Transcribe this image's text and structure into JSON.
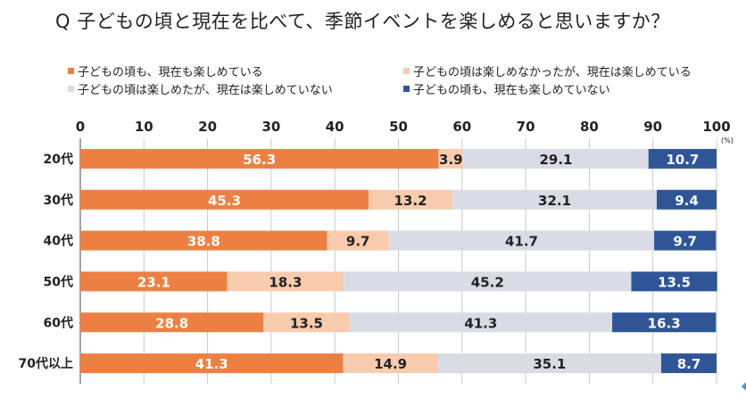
{
  "title": "Q 子どもの頃と現在を比べて、季節イベントを楽しめると思いますか？",
  "colors": {
    "series1": "#ec8042",
    "series2": "#f9cbad",
    "series3": "#d9dce5",
    "series4": "#2f5597",
    "grid": "#c9c9c9",
    "axis": "#222222"
  },
  "chart_data": {
    "type": "bar",
    "orientation": "horizontal-stacked",
    "title": "Q 子どもの頃と現在を比べて、季節イベントを楽しめると思いますか？",
    "unit": "(%)",
    "xlim": [
      0,
      100
    ],
    "xticks": [
      "0",
      "10",
      "20",
      "30",
      "40",
      "50",
      "60",
      "70",
      "80",
      "90",
      "100"
    ],
    "categories": [
      "20代",
      "30代",
      "40代",
      "50代",
      "60代",
      "70代以上"
    ],
    "legend_position": "top",
    "grid": true,
    "series": [
      {
        "name": "子どもの頃も、現在も楽しめている",
        "values": [
          56.3,
          45.3,
          38.8,
          23.1,
          28.8,
          41.3
        ]
      },
      {
        "name": "子どもの頃は楽しめなかったが、現在は楽しめている",
        "values": [
          3.9,
          13.2,
          9.7,
          18.3,
          13.5,
          14.9
        ]
      },
      {
        "name": "子どもの頃は楽しめたが、現在は楽しめていない",
        "values": [
          29.1,
          32.1,
          41.7,
          45.2,
          41.3,
          35.1
        ]
      },
      {
        "name": "子どもの頃も、現在も楽しめていない",
        "values": [
          10.7,
          9.4,
          9.7,
          13.5,
          16.3,
          8.7
        ]
      }
    ]
  }
}
